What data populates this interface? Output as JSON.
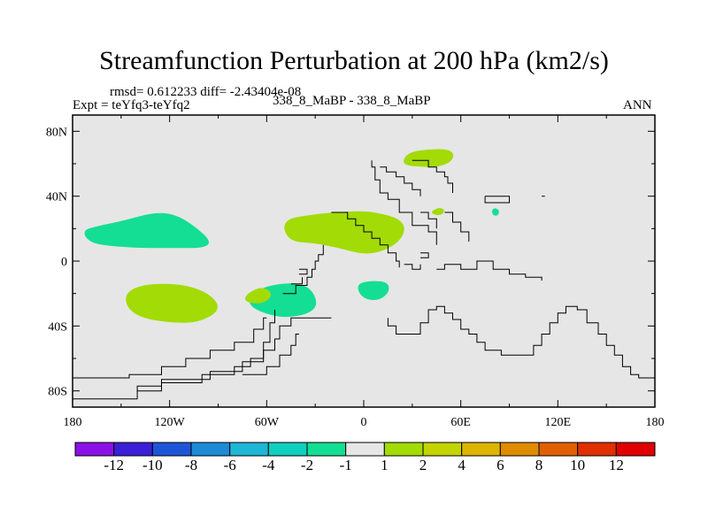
{
  "chart_data": {
    "type": "map-contour",
    "title": "Streamfunction Perturbation at 200 hPa (km2/s)",
    "stats": "rmsd= 0.612233 diff= -2.43404e-08",
    "experiment": "Expt = teYfq3-teYfq2",
    "case": "338_8_MaBP - 338_8_MaBP",
    "season": "ANN",
    "x_ticks": [
      "180",
      "120W",
      "60W",
      "0",
      "60E",
      "120E",
      "180"
    ],
    "x_range_deg": [
      -180,
      180
    ],
    "y_ticks": [
      "80N",
      "40N",
      "0",
      "40S",
      "80S"
    ],
    "y_range_deg": [
      -90,
      90
    ],
    "colorbar_labels": [
      "-12",
      "-10",
      "-8",
      "-6",
      "-4",
      "-2",
      "-1",
      "1",
      "2",
      "4",
      "6",
      "8",
      "10",
      "12"
    ],
    "colorbar_colors": [
      "#8a12e6",
      "#3a1fd6",
      "#1e55d8",
      "#1f8ad8",
      "#1fb5d5",
      "#10cfbf",
      "#14de93",
      "#e6e6e6",
      "#a2db06",
      "#c2d500",
      "#ddb400",
      "#e08c00",
      "#e06000",
      "#e03000",
      "#e00000"
    ],
    "background_color": "#e6e6e6",
    "regions": [
      {
        "label": "positive anomaly NE Asia",
        "value_band": "1 to 2",
        "center": [
          47,
          62
        ],
        "color": "#a2db06",
        "outline": [
          [
            24,
            62
          ],
          [
            28,
            67
          ],
          [
            40,
            69
          ],
          [
            52,
            69
          ],
          [
            56,
            66
          ],
          [
            54,
            61
          ],
          [
            46,
            58
          ],
          [
            36,
            58
          ],
          [
            26,
            59
          ]
        ]
      },
      {
        "label": "positive anomaly Central Asia",
        "value_band": "1 to 2",
        "center": [
          47,
          31
        ],
        "color": "#a2db06",
        "outline": [
          [
            41,
            30
          ],
          [
            46,
            33
          ],
          [
            50,
            32
          ],
          [
            49,
            29
          ],
          [
            45,
            28
          ]
        ]
      },
      {
        "label": "negative anomaly Tibet",
        "value_band": "-2 to -1",
        "center": [
          82,
          30
        ],
        "color": "#14de93",
        "outline": [
          [
            79,
            31
          ],
          [
            81,
            33
          ],
          [
            84,
            31
          ],
          [
            83,
            28
          ],
          [
            80,
            28
          ]
        ]
      },
      {
        "label": "positive anomaly North Atlantic",
        "value_band": "1 to 2",
        "center": [
          -12,
          18
        ],
        "color": "#a2db06",
        "outline": [
          [
            -50,
            20
          ],
          [
            -47,
            26
          ],
          [
            -36,
            28
          ],
          [
            -20,
            30
          ],
          [
            0,
            31
          ],
          [
            12,
            29
          ],
          [
            22,
            26
          ],
          [
            26,
            20
          ],
          [
            22,
            12
          ],
          [
            12,
            6
          ],
          [
            0,
            4
          ],
          [
            -15,
            8
          ],
          [
            -30,
            11
          ],
          [
            -45,
            12
          ]
        ]
      },
      {
        "label": "negative anomaly North Pacific",
        "value_band": "-2 to -1",
        "center": [
          -139,
          17
        ],
        "color": "#14de93",
        "outline": [
          [
            -173,
            19
          ],
          [
            -167,
            21
          ],
          [
            -148,
            25
          ],
          [
            -130,
            30
          ],
          [
            -117,
            29
          ],
          [
            -105,
            22
          ],
          [
            -94,
            12
          ],
          [
            -99,
            8
          ],
          [
            -118,
            8
          ],
          [
            -140,
            8
          ],
          [
            -165,
            10
          ],
          [
            -172,
            14
          ]
        ]
      },
      {
        "label": "positive anomaly South Pacific",
        "value_band": "1 to 2",
        "center": [
          -120,
          -28
        ],
        "color": "#a2db06",
        "outline": [
          [
            -147,
            -19
          ],
          [
            -135,
            -14
          ],
          [
            -112,
            -14
          ],
          [
            -95,
            -20
          ],
          [
            -88,
            -30
          ],
          [
            -102,
            -38
          ],
          [
            -120,
            -38
          ],
          [
            -138,
            -35
          ],
          [
            -147,
            -28
          ]
        ]
      },
      {
        "label": "negative anomaly South Atlantic",
        "value_band": "-2 to -1",
        "center": [
          -57,
          -25
        ],
        "color": "#14de93",
        "outline": [
          [
            -71,
            -23
          ],
          [
            -63,
            -16
          ],
          [
            -45,
            -13
          ],
          [
            -33,
            -16
          ],
          [
            -28,
            -27
          ],
          [
            -35,
            -33
          ],
          [
            -50,
            -35
          ],
          [
            -62,
            -32
          ],
          [
            -70,
            -28
          ]
        ]
      },
      {
        "label": "positive anomaly off South America",
        "value_band": "1 to 2",
        "center": [
          -64,
          -22
        ],
        "color": "#a2db06",
        "outline": [
          [
            -72,
            -20
          ],
          [
            -64,
            -16
          ],
          [
            -58,
            -18
          ],
          [
            -57,
            -22
          ],
          [
            -62,
            -26
          ],
          [
            -70,
            -26
          ],
          [
            -74,
            -24
          ]
        ]
      },
      {
        "label": "negative anomaly South Atlantic east",
        "value_band": "-2 to -1",
        "center": [
          7,
          -18
        ],
        "color": "#14de93",
        "outline": [
          [
            -4,
            -14
          ],
          [
            5,
            -12
          ],
          [
            15,
            -13
          ],
          [
            16,
            -19
          ],
          [
            10,
            -24
          ],
          [
            2,
            -24
          ],
          [
            -3,
            -20
          ]
        ]
      }
    ],
    "coastlines": [
      [
        [
          5,
          62
        ],
        [
          5,
          58
        ],
        [
          7,
          58
        ],
        [
          7,
          50
        ],
        [
          10,
          50
        ],
        [
          10,
          42
        ],
        [
          15,
          42
        ],
        [
          15,
          38
        ],
        [
          22,
          38
        ],
        [
          22,
          30
        ],
        [
          30,
          30
        ],
        [
          30,
          22
        ],
        [
          40,
          22
        ],
        [
          40,
          18
        ],
        [
          45,
          18
        ],
        [
          45,
          10
        ]
      ],
      [
        [
          10,
          58
        ],
        [
          14,
          58
        ],
        [
          14,
          55
        ],
        [
          20,
          55
        ],
        [
          20,
          52
        ],
        [
          25,
          52
        ],
        [
          25,
          48
        ],
        [
          30,
          48
        ],
        [
          30,
          44
        ],
        [
          35,
          44
        ],
        [
          35,
          40
        ]
      ],
      [
        [
          30,
          62
        ],
        [
          40,
          62
        ],
        [
          40,
          58
        ],
        [
          45,
          58
        ],
        [
          45,
          55
        ],
        [
          50,
          55
        ],
        [
          50,
          52
        ],
        [
          52,
          52
        ],
        [
          52,
          48
        ],
        [
          55,
          48
        ],
        [
          55,
          42
        ]
      ],
      [
        [
          35,
          30
        ],
        [
          40,
          30
        ],
        [
          40,
          26
        ],
        [
          45,
          26
        ],
        [
          45,
          20
        ]
      ],
      [
        [
          50,
          30
        ],
        [
          55,
          30
        ],
        [
          55,
          24
        ],
        [
          60,
          24
        ],
        [
          60,
          18
        ],
        [
          65,
          18
        ],
        [
          65,
          12
        ]
      ],
      [
        [
          -20,
          30
        ],
        [
          -10,
          30
        ],
        [
          -10,
          26
        ],
        [
          -5,
          26
        ],
        [
          -5,
          22
        ],
        [
          0,
          22
        ],
        [
          0,
          18
        ],
        [
          5,
          18
        ],
        [
          5,
          14
        ],
        [
          10,
          14
        ],
        [
          10,
          10
        ],
        [
          15,
          10
        ],
        [
          15,
          5
        ],
        [
          20,
          5
        ],
        [
          20,
          0
        ],
        [
          22,
          0
        ],
        [
          22,
          -4
        ]
      ],
      [
        [
          -25,
          10
        ],
        [
          -25,
          4
        ],
        [
          -28,
          4
        ],
        [
          -28,
          0
        ],
        [
          -30,
          0
        ],
        [
          -30,
          -5
        ],
        [
          -32,
          -5
        ],
        [
          -32,
          -10
        ],
        [
          -35,
          -10
        ],
        [
          -35,
          -15
        ],
        [
          -42,
          -15
        ],
        [
          -42,
          -20
        ],
        [
          -50,
          -20
        ]
      ],
      [
        [
          -38,
          -10
        ],
        [
          -38,
          -14
        ],
        [
          -45,
          -14
        ]
      ],
      [
        [
          -55,
          -30
        ],
        [
          -55,
          -38
        ],
        [
          -58,
          -38
        ],
        [
          -58,
          -50
        ],
        [
          -62,
          -50
        ],
        [
          -62,
          -60
        ],
        [
          -70,
          -60
        ],
        [
          -70,
          -65
        ],
        [
          -80,
          -65
        ],
        [
          -80,
          -70
        ],
        [
          -100,
          -70
        ],
        [
          -100,
          -75
        ],
        [
          -125,
          -75
        ],
        [
          -125,
          -80
        ],
        [
          -140,
          -80
        ],
        [
          -140,
          -85
        ],
        [
          -180,
          -85
        ]
      ],
      [
        [
          -60,
          -35
        ],
        [
          -62,
          -35
        ],
        [
          -62,
          -42
        ],
        [
          -68,
          -42
        ],
        [
          -68,
          -50
        ],
        [
          -80,
          -50
        ],
        [
          -80,
          -55
        ],
        [
          -95,
          -55
        ],
        [
          -95,
          -60
        ],
        [
          -110,
          -60
        ],
        [
          -110,
          -65
        ],
        [
          -125,
          -65
        ],
        [
          -125,
          -70
        ],
        [
          -145,
          -70
        ],
        [
          -145,
          -72
        ],
        [
          -180,
          -72
        ]
      ],
      [
        [
          -50,
          -40
        ],
        [
          -52,
          -40
        ],
        [
          -52,
          -48
        ],
        [
          -55,
          -48
        ],
        [
          -55,
          -55
        ],
        [
          -62,
          -55
        ],
        [
          -62,
          -62
        ],
        [
          -75,
          -62
        ],
        [
          -75,
          -68
        ],
        [
          -95,
          -68
        ],
        [
          -95,
          -73
        ],
        [
          -125,
          -73
        ],
        [
          -125,
          -77
        ],
        [
          -140,
          -77
        ],
        [
          -140,
          -80
        ]
      ],
      [
        [
          -40,
          -45
        ],
        [
          -42,
          -45
        ],
        [
          -42,
          -52
        ],
        [
          -45,
          -52
        ],
        [
          -45,
          -58
        ],
        [
          -52,
          -58
        ],
        [
          -52,
          -65
        ],
        [
          -60,
          -65
        ],
        [
          -60,
          -70
        ],
        [
          -75,
          -70
        ]
      ],
      [
        [
          -20,
          -35
        ],
        [
          -45,
          -35
        ],
        [
          -45,
          -40
        ],
        [
          -50,
          -40
        ]
      ],
      [
        [
          15,
          -35
        ],
        [
          15,
          -40
        ],
        [
          20,
          -40
        ],
        [
          20,
          -45
        ],
        [
          35,
          -45
        ],
        [
          35,
          -38
        ],
        [
          40,
          -38
        ],
        [
          40,
          -30
        ],
        [
          45,
          -30
        ],
        [
          45,
          -28
        ],
        [
          50,
          -28
        ],
        [
          50,
          -32
        ],
        [
          55,
          -32
        ],
        [
          55,
          -36
        ],
        [
          60,
          -36
        ],
        [
          60,
          -42
        ],
        [
          65,
          -42
        ],
        [
          65,
          -45
        ],
        [
          70,
          -45
        ],
        [
          70,
          -50
        ],
        [
          75,
          -50
        ],
        [
          75,
          -55
        ],
        [
          85,
          -55
        ],
        [
          85,
          -58
        ],
        [
          105,
          -58
        ],
        [
          105,
          -52
        ],
        [
          110,
          -52
        ],
        [
          110,
          -45
        ],
        [
          115,
          -45
        ],
        [
          115,
          -38
        ],
        [
          120,
          -38
        ],
        [
          120,
          -32
        ],
        [
          125,
          -32
        ],
        [
          125,
          -28
        ],
        [
          132,
          -28
        ],
        [
          132,
          -30
        ],
        [
          138,
          -30
        ],
        [
          138,
          -38
        ],
        [
          145,
          -38
        ],
        [
          145,
          -45
        ],
        [
          150,
          -45
        ],
        [
          150,
          -52
        ],
        [
          155,
          -52
        ],
        [
          155,
          -58
        ],
        [
          160,
          -58
        ],
        [
          160,
          -65
        ],
        [
          165,
          -65
        ],
        [
          165,
          -70
        ],
        [
          170,
          -70
        ],
        [
          170,
          -72
        ],
        [
          180,
          -72
        ]
      ],
      [
        [
          45,
          -5
        ],
        [
          50,
          -5
        ],
        [
          50,
          -2
        ],
        [
          60,
          -2
        ],
        [
          60,
          -5
        ],
        [
          70,
          -5
        ],
        [
          70,
          0
        ],
        [
          80,
          0
        ],
        [
          80,
          -5
        ],
        [
          90,
          -5
        ],
        [
          90,
          -8
        ],
        [
          100,
          -8
        ],
        [
          100,
          -10
        ],
        [
          110,
          -10
        ],
        [
          110,
          -12
        ]
      ],
      [
        [
          25,
          -2
        ],
        [
          30,
          -2
        ],
        [
          30,
          -5
        ],
        [
          35,
          -5
        ],
        [
          35,
          -2
        ]
      ],
      [
        [
          35,
          5
        ],
        [
          40,
          5
        ],
        [
          40,
          2
        ],
        [
          35,
          2
        ]
      ],
      [
        [
          -40,
          -5
        ],
        [
          -35,
          -5
        ],
        [
          -35,
          -8
        ],
        [
          -40,
          -8
        ]
      ],
      [
        [
          75,
          40
        ],
        [
          90,
          40
        ],
        [
          90,
          36
        ],
        [
          75,
          36
        ],
        [
          75,
          40
        ]
      ],
      [
        [
          110,
          40
        ],
        [
          112,
          40
        ]
      ]
    ]
  }
}
